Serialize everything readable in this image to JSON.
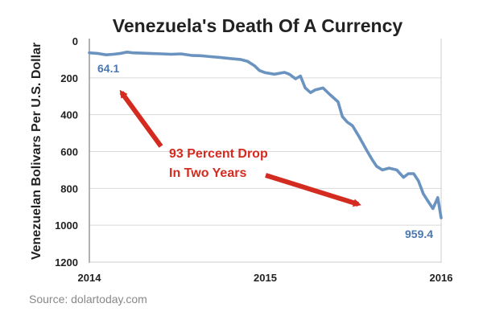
{
  "chart_data": {
    "type": "line",
    "title": "Venezuela's Death Of A Currency",
    "xlabel": "",
    "ylabel": "Venezuelan Bolivars Per U.S. Dollar",
    "y_inverted": true,
    "ylim": [
      0,
      1200
    ],
    "y_ticks": [
      "0",
      "200",
      "400",
      "600",
      "800",
      "1000",
      "1200"
    ],
    "y_tick_values": [
      0,
      200,
      400,
      600,
      800,
      1000,
      1200
    ],
    "x_ticks": [
      "2014",
      "2015",
      "2016"
    ],
    "x_tick_values": [
      "2014-01-01",
      "2015-01-01",
      "2016-01-01"
    ],
    "grid": true,
    "line_color": "#6a93bf",
    "series": [
      {
        "x": [
          "2014-01-01",
          "2014-01-20",
          "2014-02-05",
          "2014-02-20",
          "2014-03-05",
          "2014-03-20",
          "2014-04-01",
          "2014-04-20",
          "2014-05-10",
          "2014-06-01",
          "2014-06-20",
          "2014-07-10",
          "2014-08-01",
          "2014-08-20",
          "2014-09-10",
          "2014-10-01",
          "2014-10-20",
          "2014-11-10",
          "2014-11-25",
          "2014-12-10",
          "2014-12-20",
          "2015-01-01",
          "2015-01-20",
          "2015-02-10",
          "2015-02-20",
          "2015-03-05",
          "2015-03-15",
          "2015-03-25",
          "2015-04-05",
          "2015-04-15",
          "2015-05-01",
          "2015-05-15",
          "2015-06-01",
          "2015-06-10",
          "2015-06-20",
          "2015-07-01",
          "2015-07-15",
          "2015-08-01",
          "2015-08-10",
          "2015-08-20",
          "2015-09-01",
          "2015-09-15",
          "2015-10-01",
          "2015-10-15",
          "2015-10-25",
          "2015-11-05",
          "2015-11-15",
          "2015-11-25",
          "2015-12-05",
          "2015-12-15",
          "2015-12-25",
          "2016-01-01"
        ],
        "values": [
          64.1,
          68,
          75,
          72,
          68,
          60,
          64,
          66,
          68,
          70,
          72,
          70,
          78,
          80,
          85,
          90,
          95,
          100,
          110,
          135,
          160,
          172,
          180,
          170,
          180,
          205,
          190,
          255,
          280,
          265,
          255,
          290,
          330,
          410,
          440,
          460,
          520,
          600,
          640,
          680,
          700,
          690,
          700,
          740,
          720,
          720,
          760,
          830,
          870,
          910,
          850,
          959.4
        ]
      }
    ],
    "annotations": {
      "start_value_label": "64.1",
      "end_value_label": "959.4",
      "drop_line1": "93 Percent Drop",
      "drop_line2": "In Two Years"
    },
    "source": "Source: dolartoday.com"
  }
}
